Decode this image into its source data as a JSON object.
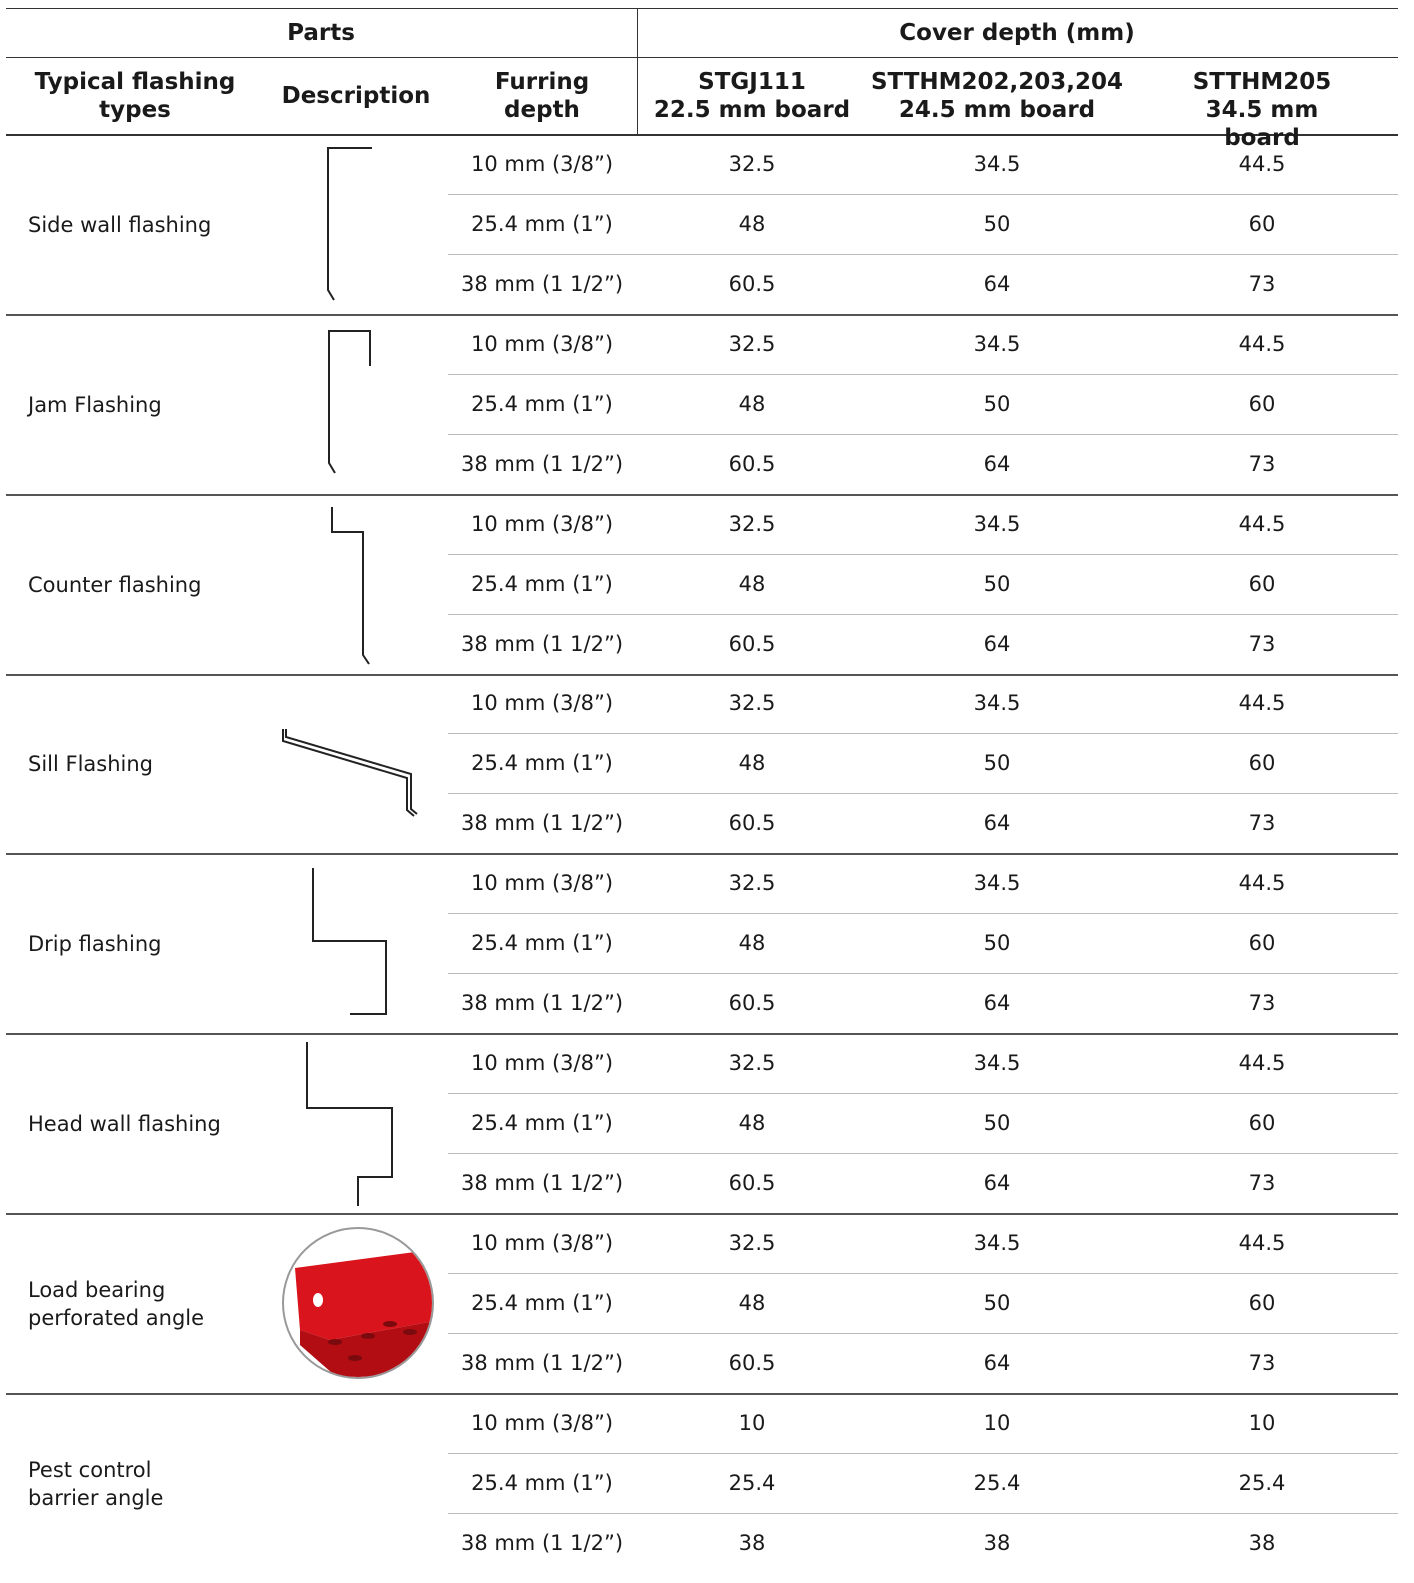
{
  "header": {
    "group_parts": "Parts",
    "group_cover": "Cover depth (mm)",
    "columns": [
      "Typical flashing\ntypes",
      "Description",
      "Furring\ndepth",
      "STGJ111\n22.5 mm board",
      "STTHM202,203,204\n24.5 mm board",
      "STTHM205\n34.5 mm board"
    ]
  },
  "groups": [
    {
      "type": "Side wall flashing",
      "rows": [
        [
          "10 mm (3/8”)",
          "32.5",
          "34.5",
          "44.5"
        ],
        [
          "25.4 mm (1”)",
          "48",
          "50",
          "60"
        ],
        [
          "38 mm (1 1/2”)",
          "60.5",
          "64",
          "73"
        ]
      ]
    },
    {
      "type": "Jam Flashing",
      "rows": [
        [
          "10 mm (3/8”)",
          "32.5",
          "34.5",
          "44.5"
        ],
        [
          "25.4 mm (1”)",
          "48",
          "50",
          "60"
        ],
        [
          "38 mm (1 1/2”)",
          "60.5",
          "64",
          "73"
        ]
      ]
    },
    {
      "type": "Counter flashing",
      "rows": [
        [
          "10 mm (3/8”)",
          "32.5",
          "34.5",
          "44.5"
        ],
        [
          "25.4 mm (1”)",
          "48",
          "50",
          "60"
        ],
        [
          "38 mm (1 1/2”)",
          "60.5",
          "64",
          "73"
        ]
      ]
    },
    {
      "type": "Sill Flashing",
      "rows": [
        [
          "10 mm (3/8”)",
          "32.5",
          "34.5",
          "44.5"
        ],
        [
          "25.4 mm (1”)",
          "48",
          "50",
          "60"
        ],
        [
          "38 mm (1 1/2”)",
          "60.5",
          "64",
          "73"
        ]
      ]
    },
    {
      "type": "Drip flashing",
      "rows": [
        [
          "10 mm (3/8”)",
          "32.5",
          "34.5",
          "44.5"
        ],
        [
          "25.4 mm (1”)",
          "48",
          "50",
          "60"
        ],
        [
          "38 mm (1 1/2”)",
          "60.5",
          "64",
          "73"
        ]
      ]
    },
    {
      "type": "Head wall flashing",
      "rows": [
        [
          "10 mm (3/8”)",
          "32.5",
          "34.5",
          "44.5"
        ],
        [
          "25.4 mm (1”)",
          "48",
          "50",
          "60"
        ],
        [
          "38 mm (1 1/2”)",
          "60.5",
          "64",
          "73"
        ]
      ]
    },
    {
      "type": "Load bearing\nperforated angle",
      "rows": [
        [
          "10 mm (3/8”)",
          "32.5",
          "34.5",
          "44.5"
        ],
        [
          "25.4 mm (1”)",
          "48",
          "50",
          "60"
        ],
        [
          "38 mm (1 1/2”)",
          "60.5",
          "64",
          "73"
        ]
      ]
    },
    {
      "type": "Pest control\nbarrier angle",
      "rows": [
        [
          "10 mm (3/8”)",
          "10",
          "10",
          "10"
        ],
        [
          "25.4 mm (1”)",
          "25.4",
          "25.4",
          "25.4"
        ],
        [
          "38 mm (1 1/2”)",
          "38",
          "38",
          "38"
        ]
      ]
    }
  ]
}
